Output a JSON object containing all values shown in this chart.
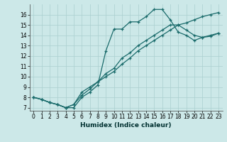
{
  "xlabel": "Humidex (Indice chaleur)",
  "ylabel": "",
  "xlim": [
    -0.5,
    23.5
  ],
  "ylim": [
    6.7,
    17.0
  ],
  "yticks": [
    7,
    8,
    9,
    10,
    11,
    12,
    13,
    14,
    15,
    16
  ],
  "xticks": [
    0,
    1,
    2,
    3,
    4,
    5,
    6,
    7,
    8,
    9,
    10,
    11,
    12,
    13,
    14,
    15,
    16,
    17,
    18,
    19,
    20,
    21,
    22,
    23
  ],
  "bg_color": "#cce8e8",
  "grid_color": "#aacfcf",
  "line_color": "#1a6b6b",
  "lines": [
    {
      "x": [
        0,
        1,
        2,
        3,
        4,
        5,
        6,
        7,
        8,
        9,
        10,
        11,
        12,
        13,
        14,
        15,
        16,
        17,
        18,
        19,
        20,
        21,
        22,
        23
      ],
      "y": [
        8.0,
        7.8,
        7.5,
        7.3,
        7.0,
        7.0,
        8.0,
        8.5,
        9.2,
        12.5,
        14.6,
        14.6,
        15.3,
        15.3,
        15.8,
        16.5,
        16.5,
        15.5,
        14.3,
        14.0,
        13.5,
        13.8,
        14.0,
        14.2
      ]
    },
    {
      "x": [
        0,
        1,
        2,
        3,
        4,
        5,
        6,
        7,
        8,
        9,
        10,
        11,
        12,
        13,
        14,
        15,
        16,
        17,
        18,
        19,
        20,
        21,
        22,
        23
      ],
      "y": [
        8.0,
        7.8,
        7.5,
        7.3,
        7.0,
        7.3,
        8.2,
        8.8,
        9.5,
        10.3,
        10.8,
        11.8,
        12.3,
        13.0,
        13.5,
        14.0,
        14.5,
        15.0,
        15.0,
        14.5,
        14.0,
        13.8,
        13.9,
        14.2
      ]
    },
    {
      "x": [
        0,
        1,
        2,
        3,
        4,
        5,
        6,
        7,
        8,
        9,
        10,
        11,
        12,
        13,
        14,
        15,
        16,
        17,
        18,
        19,
        20,
        21,
        22,
        23
      ],
      "y": [
        8.0,
        7.8,
        7.5,
        7.3,
        7.0,
        7.3,
        8.5,
        9.0,
        9.5,
        10.0,
        10.5,
        11.2,
        11.8,
        12.5,
        13.0,
        13.5,
        14.0,
        14.5,
        15.0,
        15.2,
        15.5,
        15.8,
        16.0,
        16.2
      ]
    }
  ],
  "xlabel_fontsize": 6.5,
  "tick_fontsize": 5.5
}
